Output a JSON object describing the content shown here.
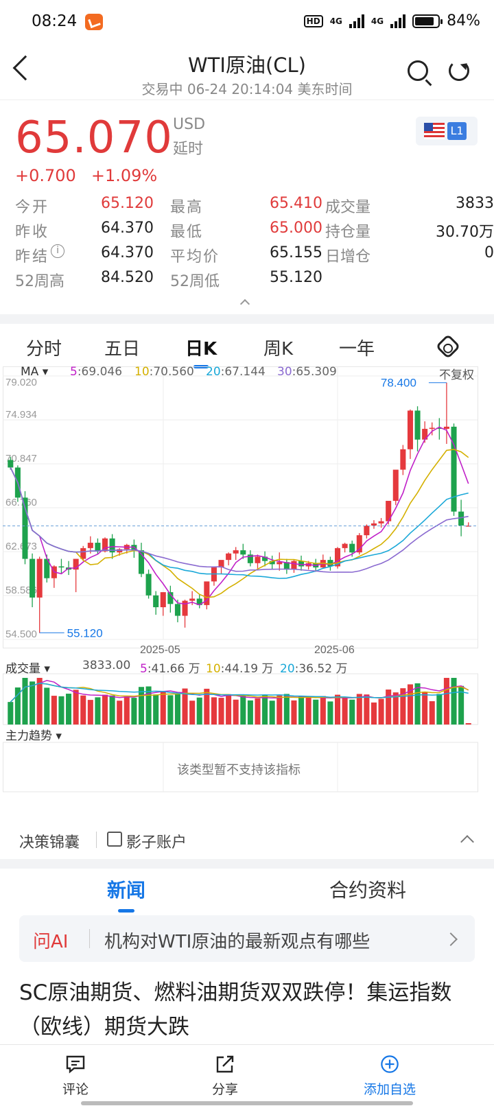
{
  "status": {
    "time": "08:24",
    "hd": "HD",
    "net1": "4G",
    "net2": "4G",
    "battery": "84%"
  },
  "nav": {
    "title": "WTI原油(CL)",
    "subtitle": "交易中 06-24 20:14:04 美东时间"
  },
  "quote": {
    "price": "65.070",
    "currency": "USD",
    "delay": "延时",
    "change": "+0.700",
    "change_pct": "+1.09%",
    "level": "L1",
    "rows": [
      {
        "l1": "今开",
        "v1": "65.120",
        "l2": "最高",
        "v2": "65.410",
        "l3": "成交量",
        "v3": "3833"
      },
      {
        "l1": "昨收",
        "v1": "64.370",
        "l2": "最低",
        "v2": "65.000",
        "l3": "持仓量",
        "v3": "30.70万"
      },
      {
        "l1": "昨结",
        "v1": "64.370",
        "l2": "平均价",
        "v2": "65.155",
        "l3": "日增仓",
        "v3": "0"
      },
      {
        "l1": "52周高",
        "v1": "84.520",
        "l2": "52周低",
        "v2": "55.120",
        "l3": "",
        "v3": ""
      }
    ]
  },
  "tabs": [
    "分时",
    "五日",
    "日K",
    "周K",
    "一年"
  ],
  "active_tab": "日K",
  "ma": {
    "label": "MA",
    "adjust": "不复权",
    "items": [
      {
        "key": "5",
        "value": ":69.046",
        "color": "#c020c8"
      },
      {
        "key": "10",
        "value": ":70.560",
        "color": "#d4b000"
      },
      {
        "key": "20",
        "value": ":67.144",
        "color": "#1aa8d8"
      },
      {
        "key": "30",
        "value": ":65.309",
        "color": "#8a6ad0"
      }
    ]
  },
  "chart_data": {
    "type": "candlestick",
    "y_ticks": [
      "79.020",
      "74.934",
      "70.847",
      "66.760",
      "62.673",
      "58.586",
      "54.500"
    ],
    "ylim": [
      54.5,
      79.02
    ],
    "x_ticks": [
      "2025-05",
      "2025-06"
    ],
    "max_label": "78.400",
    "min_label": "55.120",
    "last_price": 65.07,
    "candles": [
      [
        71.2,
        71.5,
        70.5,
        70.3
      ],
      [
        70.5,
        70.7,
        67.7,
        67.3
      ],
      [
        67.7,
        68.3,
        62.0,
        61.5
      ],
      [
        62.0,
        62.5,
        58.4,
        57.5
      ],
      [
        58.4,
        62.2,
        62.0,
        55.1
      ],
      [
        62.0,
        62.4,
        60.2,
        59.8
      ],
      [
        60.2,
        61.4,
        61.3,
        59.3
      ],
      [
        61.3,
        62.0,
        61.2,
        60.6
      ],
      [
        61.2,
        61.8,
        61.0,
        60.5
      ],
      [
        61.0,
        62.0,
        62.0,
        58.9
      ],
      [
        62.0,
        63.2,
        63.0,
        61.8
      ],
      [
        63.0,
        64.1,
        63.5,
        62.5
      ],
      [
        63.5,
        63.9,
        62.7,
        62.4
      ],
      [
        62.7,
        64.0,
        63.9,
        62.6
      ],
      [
        63.9,
        64.3,
        62.6,
        62.0
      ],
      [
        62.6,
        63.0,
        62.9,
        62.3
      ],
      [
        62.9,
        63.4,
        63.3,
        62.5
      ],
      [
        63.3,
        63.8,
        62.8,
        62.1
      ],
      [
        62.8,
        63.5,
        60.6,
        60.3
      ],
      [
        60.6,
        61.0,
        58.6,
        58.3
      ],
      [
        58.6,
        59.0,
        57.5,
        56.8
      ],
      [
        57.5,
        58.9,
        58.9,
        56.7
      ],
      [
        58.9,
        59.5,
        57.8,
        57.0
      ],
      [
        57.8,
        58.2,
        56.7,
        56.1
      ],
      [
        56.7,
        58.2,
        58.1,
        55.6
      ],
      [
        58.1,
        59.0,
        58.3,
        57.7
      ],
      [
        58.3,
        58.7,
        57.7,
        57.4
      ],
      [
        57.7,
        59.7,
        59.9,
        57.3
      ],
      [
        59.9,
        61.3,
        61.2,
        59.5
      ],
      [
        61.2,
        61.7,
        61.9,
        60.6
      ],
      [
        61.9,
        62.6,
        62.5,
        61.4
      ],
      [
        62.5,
        63.1,
        62.8,
        61.9
      ],
      [
        62.8,
        63.4,
        62.4,
        62.0
      ],
      [
        62.4,
        62.8,
        61.6,
        61.3
      ],
      [
        61.6,
        62.4,
        62.2,
        61.1
      ],
      [
        62.2,
        62.7,
        61.8,
        61.3
      ],
      [
        61.8,
        62.3,
        61.5,
        61.0
      ],
      [
        61.5,
        62.6,
        61.7,
        60.9
      ],
      [
        61.7,
        62.0,
        61.0,
        60.6
      ],
      [
        61.0,
        61.9,
        61.8,
        60.7
      ],
      [
        61.8,
        62.3,
        61.3,
        60.9
      ],
      [
        61.3,
        61.8,
        61.6,
        61.0
      ],
      [
        61.6,
        62.0,
        61.2,
        60.8
      ],
      [
        61.2,
        62.4,
        61.9,
        61.1
      ],
      [
        61.9,
        62.2,
        61.3,
        60.9
      ],
      [
        61.3,
        63.1,
        63.0,
        61.1
      ],
      [
        63.0,
        63.5,
        63.4,
        62.6
      ],
      [
        63.4,
        63.7,
        62.6,
        62.2
      ],
      [
        62.6,
        64.4,
        64.2,
        62.4
      ],
      [
        64.2,
        65.2,
        65.1,
        63.9
      ],
      [
        65.1,
        65.6,
        65.3,
        64.8
      ],
      [
        65.3,
        65.8,
        65.5,
        64.9
      ],
      [
        65.5,
        67.3,
        67.4,
        65.2
      ],
      [
        67.4,
        69.6,
        70.3,
        67.0
      ],
      [
        70.3,
        72.6,
        72.2,
        69.8
      ],
      [
        72.2,
        75.9,
        75.8,
        71.3
      ],
      [
        75.8,
        76.2,
        73.1,
        72.0
      ],
      [
        73.1,
        74.8,
        74.1,
        72.8
      ],
      [
        74.1,
        74.7,
        74.2,
        73.5
      ],
      [
        74.2,
        75.1,
        74.1,
        73.1
      ],
      [
        74.1,
        78.4,
        74.3,
        72.7
      ],
      [
        74.3,
        74.6,
        66.4,
        66.0
      ],
      [
        66.4,
        67.5,
        65.1,
        64.1
      ],
      [
        65.1,
        65.4,
        65.1,
        65.0
      ]
    ]
  },
  "volume": {
    "label": "成交量",
    "value": "3833.00",
    "items": [
      {
        "key": "5",
        "value": ":41.66 万",
        "color": "#c020c8"
      },
      {
        "key": "10",
        "value": ":44.19 万",
        "color": "#d4b000"
      },
      {
        "key": "20",
        "value": ":36.52 万",
        "color": "#1aa8d8"
      }
    ]
  },
  "indicator": {
    "label": "主力趋势",
    "notice": "该类型暂不支持该指标"
  },
  "decision": {
    "left": "决策锦囊",
    "right": "影子账户"
  },
  "news_tabs": {
    "news": "新闻",
    "contract": "合约资料"
  },
  "ask_ai": {
    "tag": "问AI",
    "question": "机构对WTI原油的最新观点有哪些"
  },
  "headline": "SC原油期货、燃料油期货双双跌停！集运指数（欧线）期货大跌",
  "bottom": {
    "comment": "评论",
    "share": "分享",
    "add": "添加自选"
  }
}
